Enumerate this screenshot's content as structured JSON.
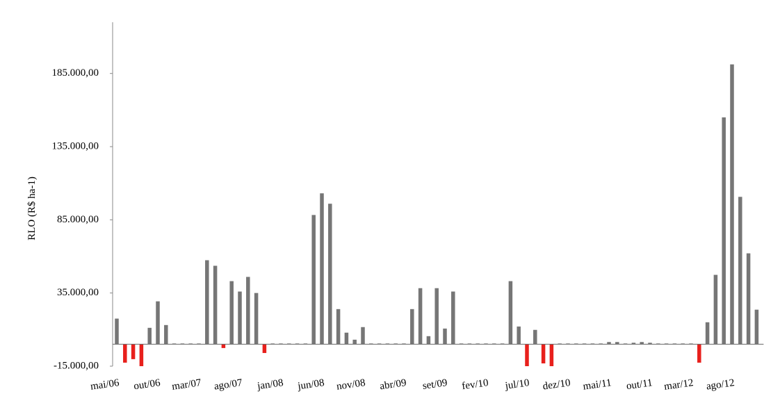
{
  "chart_data": {
    "type": "bar",
    "y_label": "RLO (R$ ha-1)",
    "categories": [
      "mai/06",
      null,
      null,
      null,
      null,
      "out/06",
      null,
      null,
      null,
      null,
      "mar/07",
      null,
      null,
      null,
      null,
      "ago/07",
      null,
      null,
      null,
      null,
      "jan/08",
      null,
      null,
      null,
      null,
      "jun/08",
      null,
      null,
      null,
      null,
      "nov/08",
      null,
      null,
      null,
      null,
      "abr/09",
      null,
      null,
      null,
      null,
      "set/09",
      null,
      null,
      null,
      null,
      "fev/10",
      null,
      null,
      null,
      null,
      "jul/10",
      null,
      null,
      null,
      null,
      "dez/10",
      null,
      null,
      null,
      null,
      "mai/11",
      null,
      null,
      null,
      null,
      "out/11",
      null,
      null,
      null,
      null,
      "mar/12",
      null,
      null,
      null,
      null,
      "ago/12",
      null,
      null,
      null
    ],
    "values": [
      17500,
      -12600,
      -10200,
      -15000,
      11200,
      29300,
      13100,
      500,
      500,
      500,
      500,
      57400,
      53600,
      -2600,
      43100,
      36000,
      46000,
      35000,
      -6000,
      500,
      500,
      500,
      500,
      500,
      88300,
      103100,
      96000,
      24000,
      7900,
      3100,
      11700,
      500,
      500,
      500,
      500,
      500,
      24000,
      38300,
      5500,
      38300,
      10700,
      36000,
      500,
      500,
      500,
      500,
      500,
      500,
      43100,
      12100,
      -15000,
      9800,
      -13100,
      -15000,
      500,
      500,
      500,
      500,
      500,
      500,
      1500,
      1500,
      500,
      1000,
      1500,
      1000,
      500,
      500,
      500,
      500,
      500,
      -12600,
      15000,
      47400,
      155000,
      191200,
      100700,
      62100,
      23600
    ],
    "color": "#767676",
    "negative_color": "#e8201c",
    "ylim": [
      -15000,
      220000
    ],
    "yticks": [
      {
        "value": -15000,
        "label": "-15.000,00"
      },
      {
        "value": 35000,
        "label": "35.000,00"
      },
      {
        "value": 85000,
        "label": "85.000,00"
      },
      {
        "value": 135000,
        "label": "135.000,00"
      },
      {
        "value": 185000,
        "label": "185.000,00"
      }
    ],
    "grid": false
  }
}
